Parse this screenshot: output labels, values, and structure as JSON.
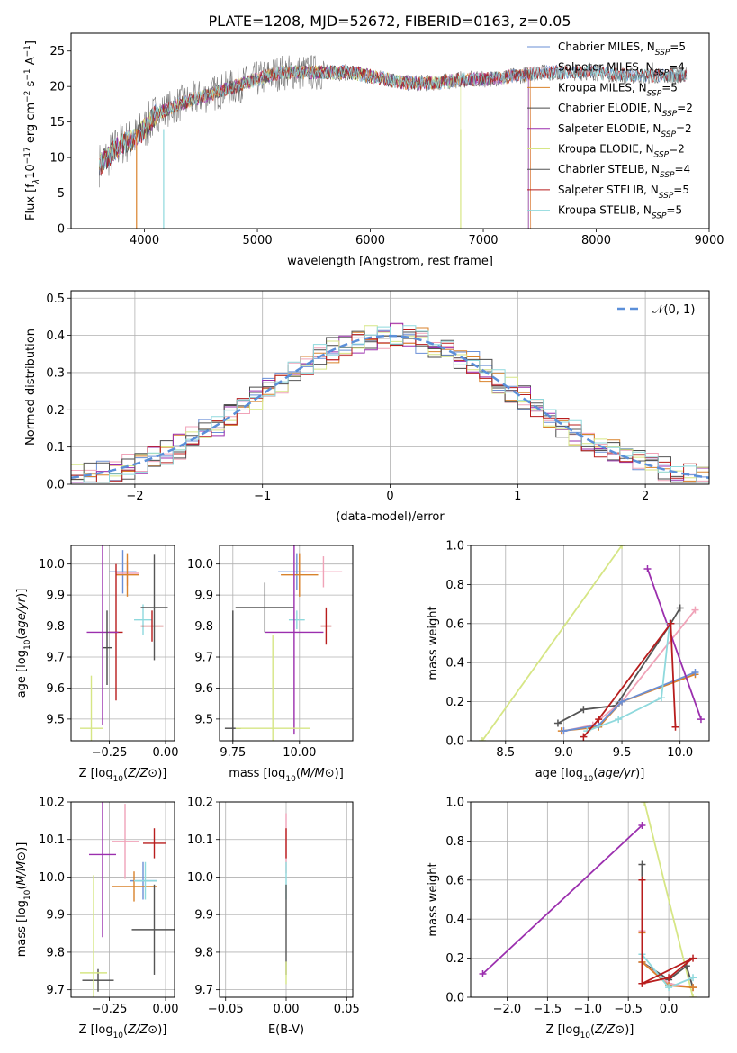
{
  "title": "PLATE=1208, MJD=52672, FIBERID=0163, z=0.05",
  "colors": {
    "chabrier_miles": "#6a8fd6",
    "salpeter_miles": "#f0a3b8",
    "kroupa_miles": "#d9822b",
    "chabrier_elodie": "#4a4a4a",
    "salpeter_elodie": "#9b2fae",
    "kroupa_elodie": "#d6e685",
    "chabrier_stelib": "#555555",
    "salpeter_stelib": "#b81d1d",
    "kroupa_stelib": "#8fd9dd",
    "normal_dashed": "#5b8fd9",
    "grid": "#b0b0b0"
  },
  "legend_top": [
    {
      "label": "Chabrier MILES, N",
      "sub": "SSP",
      "tail": "=5",
      "color": "#6a8fd6"
    },
    {
      "label": "Salpeter MILES, N",
      "sub": "SSP",
      "tail": "=4",
      "color": "#f0a3b8"
    },
    {
      "label": "Kroupa MILES, N",
      "sub": "SSP",
      "tail": "=5",
      "color": "#d9822b"
    },
    {
      "label": "Chabrier ELODIE, N",
      "sub": "SSP",
      "tail": "=2",
      "color": "#4a4a4a"
    },
    {
      "label": "Salpeter ELODIE, N",
      "sub": "SSP",
      "tail": "=2",
      "color": "#9b2fae"
    },
    {
      "label": "Kroupa ELODIE, N",
      "sub": "SSP",
      "tail": "=2",
      "color": "#d6e685"
    },
    {
      "label": "Chabrier STELIB, N",
      "sub": "SSP",
      "tail": "=4",
      "color": "#555555"
    },
    {
      "label": "Salpeter STELIB, N",
      "sub": "SSP",
      "tail": "=5",
      "color": "#b81d1d"
    },
    {
      "label": "Kroupa STELIB, N",
      "sub": "SSP",
      "tail": "=5",
      "color": "#8fd9dd"
    }
  ],
  "chart_data": [
    {
      "type": "line",
      "panel": "spectrum",
      "xlabel": "wavelength [Angstrom, rest frame]",
      "ylabel_parts": [
        "Flux [f",
        "λ",
        "10",
        "−17",
        " erg cm",
        "−2",
        " s",
        "−1",
        " A",
        "−1",
        "]"
      ],
      "xlim": [
        3350,
        9000
      ],
      "ylim": [
        0,
        27.5
      ],
      "xticks": [
        4000,
        5000,
        6000,
        7000,
        8000,
        9000
      ],
      "yticks": [
        0,
        5,
        10,
        15,
        20,
        25
      ],
      "continuum": [
        [
          3600,
          9
        ],
        [
          3700,
          10.5
        ],
        [
          3800,
          12
        ],
        [
          3900,
          12.5
        ],
        [
          4000,
          14
        ],
        [
          4100,
          16
        ],
        [
          4300,
          17.5
        ],
        [
          4500,
          18.5
        ],
        [
          4800,
          20
        ],
        [
          5000,
          21
        ],
        [
          5200,
          22
        ],
        [
          5400,
          22
        ],
        [
          5600,
          22
        ],
        [
          5800,
          22
        ],
        [
          6000,
          21.5
        ],
        [
          6300,
          20.5
        ],
        [
          6600,
          20.5
        ],
        [
          6800,
          21
        ],
        [
          7000,
          21
        ],
        [
          7300,
          21.5
        ],
        [
          7500,
          22
        ],
        [
          7800,
          22
        ],
        [
          8000,
          22
        ],
        [
          8300,
          21.5
        ],
        [
          8600,
          21.5
        ],
        [
          8800,
          21.5
        ]
      ]
    },
    {
      "type": "line",
      "panel": "residual_histogram",
      "xlabel": "(data-model)/error",
      "ylabel": "Normed distribution",
      "xlim": [
        -2.5,
        2.5
      ],
      "ylim": [
        0,
        0.52
      ],
      "xticks": [
        -2,
        -1,
        0,
        1,
        2
      ],
      "yticks": [
        0.0,
        0.1,
        0.2,
        0.3,
        0.4,
        0.5
      ],
      "legend": "𝒩(0, 1)"
    },
    {
      "type": "scatter",
      "panel": "age_vs_Z",
      "xlabel": "Z [log10(Z/Z⊙)]",
      "ylabel": "age [log10(age/yr)]",
      "xlim": [
        -0.42,
        0.04
      ],
      "ylim": [
        9.43,
        10.06
      ],
      "xticks": [
        -0.25,
        0.0
      ],
      "xticklabels": [
        "−0.25",
        "0.00"
      ],
      "yticks": [
        9.5,
        9.6,
        9.7,
        9.8,
        9.9,
        10.0
      ],
      "points": [
        {
          "x": -0.19,
          "y": 9.975,
          "xerr": 0.06,
          "yerr": 0.07,
          "color": "#6a8fd6"
        },
        {
          "x": -0.17,
          "y": 9.97,
          "xerr": 0.05,
          "yerr": 0.04,
          "color": "#f0a3b8"
        },
        {
          "x": -0.17,
          "y": 9.965,
          "xerr": 0.05,
          "yerr": 0.07,
          "color": "#d9822b"
        },
        {
          "x": -0.1,
          "y": 9.82,
          "xerr": 0.04,
          "yerr": 0.05,
          "color": "#8fd9dd"
        },
        {
          "x": -0.06,
          "y": 9.8,
          "xerr": 0.05,
          "yerr": 0.05,
          "color": "#b81d1d"
        },
        {
          "x": -0.05,
          "y": 9.86,
          "xerr": 0.06,
          "yerr": 0.17,
          "color": "#555555"
        },
        {
          "x": -0.22,
          "y": 9.78,
          "xerr": 0.03,
          "yerr": 0.22,
          "color": "#b81d1d"
        },
        {
          "x": -0.28,
          "y": 9.78,
          "xerr": 0.07,
          "yerr": 0.3,
          "color": "#9b2fae"
        },
        {
          "x": -0.26,
          "y": 9.73,
          "xerr": 0.02,
          "yerr": 0.12,
          "color": "#4a4a4a"
        },
        {
          "x": -0.33,
          "y": 9.47,
          "xerr": 0.05,
          "yerr": 0.17,
          "color": "#d6e685"
        }
      ]
    },
    {
      "type": "scatter",
      "panel": "age_vs_mass",
      "xlabel": "mass [log10(M/M⊙)]",
      "xlim": [
        9.7,
        10.2
      ],
      "ylim": [
        9.43,
        10.06
      ],
      "xticks": [
        9.75,
        10.0
      ],
      "xticklabels": [
        "9.75",
        "10.00"
      ],
      "yticks": [
        9.5,
        9.6,
        9.7,
        9.8,
        9.9,
        10.0
      ],
      "points": [
        {
          "x": 9.99,
          "y": 9.975,
          "xerr": 0.07,
          "yerr": 0.06,
          "color": "#6a8fd6"
        },
        {
          "x": 10.09,
          "y": 9.975,
          "xerr": 0.07,
          "yerr": 0.05,
          "color": "#f0a3b8"
        },
        {
          "x": 10.0,
          "y": 9.965,
          "xerr": 0.07,
          "yerr": 0.07,
          "color": "#d9822b"
        },
        {
          "x": 9.99,
          "y": 9.82,
          "xerr": 0.03,
          "yerr": 0.03,
          "color": "#8fd9dd"
        },
        {
          "x": 10.1,
          "y": 9.8,
          "xerr": 0.02,
          "yerr": 0.06,
          "color": "#b81d1d"
        },
        {
          "x": 9.87,
          "y": 9.86,
          "xerr": 0.11,
          "yerr": 0.08,
          "color": "#555555"
        },
        {
          "x": 9.98,
          "y": 9.78,
          "xerr": 0.11,
          "yerr": 0.33,
          "color": "#9b2fae"
        },
        {
          "x": 9.75,
          "y": 9.47,
          "xerr": 0.03,
          "yerr": 0.38,
          "color": "#4a4a4a"
        },
        {
          "x": 9.9,
          "y": 9.47,
          "xerr": 0.14,
          "yerr": 0.3,
          "color": "#d6e685"
        }
      ]
    },
    {
      "type": "line",
      "panel": "mass_weight_vs_age",
      "xlabel": "age [log10(age/yr)]",
      "ylabel": "mass weight",
      "xlim": [
        8.2,
        10.25
      ],
      "ylim": [
        0,
        1
      ],
      "xticks": [
        8.5,
        9.0,
        9.5,
        10.0
      ],
      "yticks": [
        0.0,
        0.2,
        0.4,
        0.6,
        0.8,
        1.0
      ],
      "series": [
        {
          "color": "#d6e685",
          "x": [
            8.3,
            9.5
          ],
          "y": [
            0.0,
            1.0
          ]
        },
        {
          "color": "#555555",
          "x": [
            8.95,
            9.17,
            9.45,
            9.92,
            10.0
          ],
          "y": [
            0.09,
            0.16,
            0.18,
            0.6,
            0.68
          ]
        },
        {
          "color": "#f0a3b8",
          "x": [
            9.0,
            9.25,
            9.5,
            10.13
          ],
          "y": [
            0.05,
            0.08,
            0.2,
            0.67
          ]
        },
        {
          "color": "#d9822b",
          "x": [
            8.98,
            9.3,
            9.5,
            10.13
          ],
          "y": [
            0.05,
            0.07,
            0.2,
            0.34
          ]
        },
        {
          "color": "#6a8fd6",
          "x": [
            9.0,
            9.3,
            9.5,
            10.13
          ],
          "y": [
            0.05,
            0.08,
            0.2,
            0.35
          ]
        },
        {
          "color": "#9b2fae",
          "x": [
            9.72,
            10.18
          ],
          "y": [
            0.88,
            0.11
          ]
        },
        {
          "color": "#8fd9dd",
          "x": [
            9.2,
            9.47,
            9.84,
            9.91
          ],
          "y": [
            0.05,
            0.11,
            0.22,
            0.6
          ]
        },
        {
          "color": "#b81d1d",
          "x": [
            9.17,
            9.3,
            9.92,
            9.96
          ],
          "y": [
            0.02,
            0.11,
            0.6,
            0.07
          ]
        }
      ]
    },
    {
      "type": "scatter",
      "panel": "mass_vs_Z",
      "xlabel": "Z [log10(Z/Z⊙)]",
      "ylabel": "mass [log10(M/M⊙)]",
      "xlim": [
        -0.42,
        0.04
      ],
      "ylim": [
        9.68,
        10.2
      ],
      "xticks": [
        -0.25,
        0.0
      ],
      "xticklabels": [
        "−0.25",
        "0.00"
      ],
      "yticks": [
        9.7,
        9.8,
        9.9,
        10.0,
        10.1,
        10.2
      ],
      "points": [
        {
          "x": -0.1,
          "y": 9.99,
          "xerr": 0.06,
          "yerr": 0.05,
          "color": "#6a8fd6"
        },
        {
          "x": -0.18,
          "y": 10.095,
          "xerr": 0.06,
          "yerr": 0.1,
          "color": "#f0a3b8"
        },
        {
          "x": -0.14,
          "y": 9.975,
          "xerr": 0.1,
          "yerr": 0.04,
          "color": "#d9822b"
        },
        {
          "x": -0.09,
          "y": 9.99,
          "xerr": 0.05,
          "yerr": 0.05,
          "color": "#8fd9dd"
        },
        {
          "x": -0.05,
          "y": 10.09,
          "xerr": 0.05,
          "yerr": 0.04,
          "color": "#b81d1d"
        },
        {
          "x": -0.05,
          "y": 9.86,
          "xerr": 0.1,
          "yerr": 0.12,
          "color": "#555555"
        },
        {
          "x": -0.28,
          "y": 10.06,
          "xerr": 0.06,
          "yerr": 0.22,
          "color": "#9b2fae"
        },
        {
          "x": -0.3,
          "y": 9.725,
          "xerr": 0.07,
          "yerr": 0.03,
          "color": "#4a4a4a"
        },
        {
          "x": -0.32,
          "y": 9.745,
          "xerr": 0.06,
          "yerr": 0.26,
          "color": "#d6e685"
        }
      ]
    },
    {
      "type": "scatter",
      "panel": "mass_vs_ebv",
      "xlabel": "E(B-V)",
      "xlim": [
        -0.055,
        0.055
      ],
      "ylim": [
        9.68,
        10.2
      ],
      "xticks": [
        -0.05,
        0.0,
        0.05
      ],
      "xticklabels": [
        "−0.05",
        "0.00",
        "0.05"
      ],
      "yticks": [
        9.7,
        9.8,
        9.9,
        10.0,
        10.1,
        10.2
      ],
      "points": [
        {
          "x": 0,
          "y": 10.09,
          "yerr": 0.08,
          "color": "#f0a3b8"
        },
        {
          "x": 0,
          "y": 10.09,
          "yerr": 0.04,
          "color": "#b81d1d"
        },
        {
          "x": 0,
          "y": 9.99,
          "yerr": 0.05,
          "color": "#8fd9dd"
        },
        {
          "x": 0,
          "y": 9.86,
          "yerr": 0.12,
          "color": "#555555"
        },
        {
          "x": 0,
          "y": 9.745,
          "yerr": 0.03,
          "color": "#d6e685"
        }
      ]
    },
    {
      "type": "line",
      "panel": "mass_weight_vs_Z",
      "xlabel": "Z [log10(Z/Z⊙)]",
      "ylabel": "mass weight",
      "xlim": [
        -2.45,
        0.5
      ],
      "ylim": [
        0,
        1
      ],
      "xticks": [
        -2.0,
        -1.5,
        -1.0,
        -0.5,
        0.0
      ],
      "xticklabels": [
        "−2.0",
        "−1.5",
        "−1.0",
        "−0.5",
        "0.0"
      ],
      "yticks": [
        0.0,
        0.2,
        0.4,
        0.6,
        0.8,
        1.0
      ],
      "series": [
        {
          "color": "#9b2fae",
          "x": [
            -2.3,
            -0.33
          ],
          "y": [
            0.12,
            0.88
          ]
        },
        {
          "color": "#d6e685",
          "x": [
            -0.3,
            0.3
          ],
          "y": [
            1.0,
            0.0
          ]
        },
        {
          "color": "#555555",
          "x": [
            -0.33,
            -0.33,
            0.0,
            0.22,
            0.3
          ],
          "y": [
            0.68,
            0.18,
            0.09,
            0.16,
            0.05
          ]
        },
        {
          "color": "#f0a3b8",
          "x": [
            -0.33,
            -0.33,
            0.0,
            0.3
          ],
          "y": [
            0.34,
            0.18,
            0.07,
            0.05
          ]
        },
        {
          "color": "#d9822b",
          "x": [
            -0.33,
            -0.33,
            0.0,
            0.3
          ],
          "y": [
            0.33,
            0.18,
            0.06,
            0.05
          ]
        },
        {
          "color": "#8fd9dd",
          "x": [
            -0.33,
            -0.33,
            0.0,
            0.3
          ],
          "y": [
            0.6,
            0.22,
            0.05,
            0.1
          ]
        },
        {
          "color": "#b81d1d",
          "x": [
            -0.33,
            -0.33,
            0.0,
            0.3,
            -0.33
          ],
          "y": [
            0.6,
            0.07,
            0.1,
            0.2,
            0.07
          ]
        }
      ]
    }
  ]
}
